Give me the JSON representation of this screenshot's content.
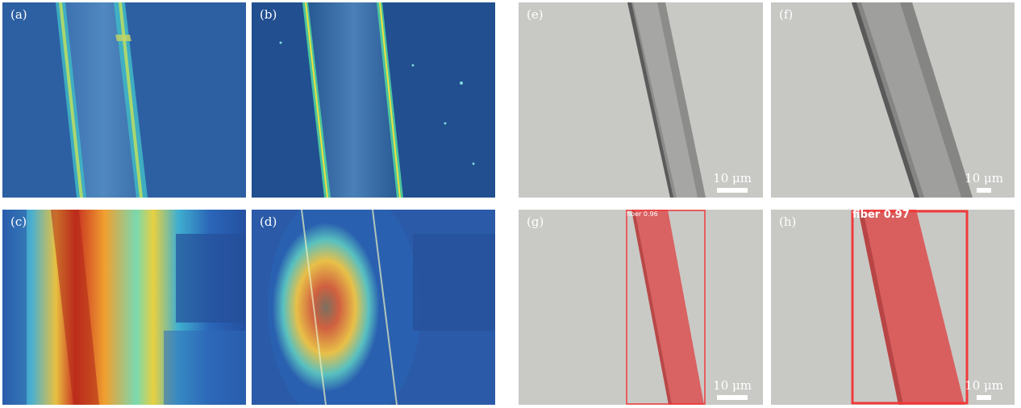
{
  "panels": {
    "a": {
      "label": "(a)"
    },
    "b": {
      "label": "(b)"
    },
    "c": {
      "label": "(c)"
    },
    "d": {
      "label": "(d)"
    },
    "e": {
      "label": "(e)",
      "scale_bar": "10 μm"
    },
    "f": {
      "label": "(f)",
      "scale_bar": "10 μm"
    },
    "g": {
      "label": "(g)",
      "scale_bar": "10 μm",
      "detection": "fiber 0.96"
    },
    "h": {
      "label": "(h)",
      "scale_bar": "10 μm",
      "detection": "fiber 0.97"
    }
  },
  "colors": {
    "micro_background": "#c9cac6",
    "fiber_gray": "#7a7b7a",
    "heatmap_blue": "#2a5ea6",
    "detection_red": "#e04a4a",
    "box_red": "#f03a3a"
  }
}
